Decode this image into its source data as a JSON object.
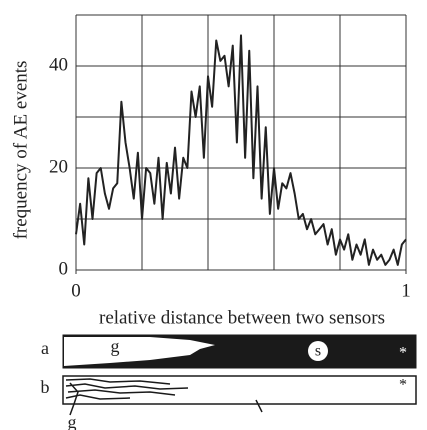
{
  "chart_data": {
    "type": "line",
    "ylabel": "frequency of AE events",
    "xlabel": "relative distance between two sensors",
    "xlim": [
      0,
      1
    ],
    "ylim": [
      0,
      50
    ],
    "xticks": [
      0,
      1
    ],
    "yticks": [
      0,
      20,
      40
    ],
    "xgrid": [
      0,
      0.2,
      0.4,
      0.6,
      0.8,
      1
    ],
    "ygrid": [
      10,
      20,
      30,
      40,
      50
    ],
    "grid": true,
    "series": [
      {
        "color": "#222",
        "x": [
          0,
          0.0125,
          0.025,
          0.0375,
          0.05,
          0.0625,
          0.075,
          0.0875,
          0.1,
          0.1125,
          0.125,
          0.1375,
          0.15,
          0.1625,
          0.175,
          0.1875,
          0.2,
          0.2125,
          0.225,
          0.2375,
          0.25,
          0.2625,
          0.275,
          0.2875,
          0.3,
          0.3125,
          0.325,
          0.3375,
          0.35,
          0.3625,
          0.375,
          0.3875,
          0.4,
          0.4125,
          0.425,
          0.4375,
          0.45,
          0.4625,
          0.475,
          0.4875,
          0.5,
          0.5125,
          0.525,
          0.5375,
          0.55,
          0.5625,
          0.575,
          0.5875,
          0.6,
          0.6125,
          0.625,
          0.6375,
          0.65,
          0.6625,
          0.675,
          0.6875,
          0.7,
          0.7125,
          0.725,
          0.7375,
          0.75,
          0.7625,
          0.775,
          0.7875,
          0.8,
          0.8125,
          0.825,
          0.8375,
          0.85,
          0.8625,
          0.875,
          0.8875,
          0.9,
          0.9125,
          0.925,
          0.9375,
          0.95,
          0.9625,
          0.975,
          0.9875,
          1
        ],
        "values": [
          7,
          13,
          5,
          18,
          10,
          19,
          20,
          15,
          12,
          16,
          17,
          33,
          25,
          20,
          14,
          23,
          10,
          20,
          19,
          13,
          22,
          10,
          21,
          15,
          24,
          14,
          22,
          20,
          35,
          30,
          36,
          22,
          38,
          32,
          45,
          41,
          42,
          36,
          44,
          25,
          46,
          22,
          43,
          18,
          36,
          14,
          28,
          11,
          20,
          12,
          17,
          16,
          19,
          15,
          10,
          11,
          8,
          10,
          7,
          8,
          9,
          5,
          8,
          3,
          6,
          4,
          7,
          2,
          5,
          3,
          6,
          1,
          4,
          2,
          3,
          1,
          2,
          4,
          1,
          5,
          6
        ]
      }
    ]
  },
  "diagrams": {
    "a": {
      "label": "a",
      "region_label": "g",
      "center_label": "s",
      "end_label": "*"
    },
    "b": {
      "label": "b",
      "end_label": "*",
      "below_label": "g"
    }
  }
}
